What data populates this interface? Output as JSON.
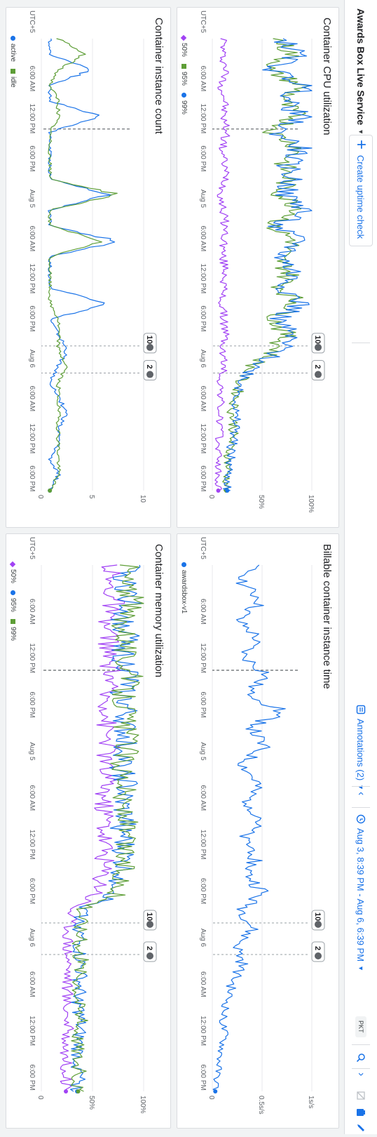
{
  "header": {
    "service_name": "Awards Box Live Service",
    "create_uptime_check": "Create uptime check",
    "annotations": "Annotations (2)",
    "time_range": "Aug 3, 8:39 PM - Aug 6, 6:39 PM",
    "timezone": "PKT"
  },
  "x_axis": {
    "tz": "UTC+5",
    "ticks": [
      "6:00 AM",
      "12:00 PM",
      "6:00 PM",
      "Aug 5",
      "6:00 AM",
      "12:00 PM",
      "6:00 PM",
      "Aug 6",
      "6:00 AM",
      "12:00 PM",
      "6:00 PM"
    ]
  },
  "annotation_badges": {
    "first": "10",
    "second": "2"
  },
  "colors": {
    "purple": "#a142f4",
    "green": "#5e9e37",
    "blue": "#1a73e8",
    "accent": "#1a73e8"
  },
  "icons": {
    "add": "plus-icon",
    "annotations": "annotation-icon",
    "prev": "chevron-left-icon",
    "clock": "clock-icon",
    "zoom": "zoom-icon",
    "next": "chevron-right-icon",
    "compare": "compare-icon",
    "save": "save-icon",
    "edit": "pencil-icon"
  },
  "charts": [
    {
      "id": "cpu",
      "title": "Container CPU utilization",
      "y_ticks": [
        "0",
        "50%",
        "100%"
      ],
      "legend": [
        {
          "label": "50%",
          "color": "#a142f4",
          "shape": "diamond"
        },
        {
          "label": "95%",
          "color": "#5e9e37",
          "shape": "square"
        },
        {
          "label": "99%",
          "color": "#1a73e8",
          "shape": "dot"
        }
      ]
    },
    {
      "id": "billable",
      "title": "Billable container instance time",
      "y_ticks": [
        "0",
        "0.5s/s",
        "1s/s"
      ],
      "legend": [
        {
          "label": "awardsbox-v1",
          "color": "#1a73e8",
          "shape": "dot"
        }
      ]
    },
    {
      "id": "instances",
      "title": "Container instance count",
      "y_ticks": [
        "0",
        "5",
        "10"
      ],
      "legend": [
        {
          "label": "active",
          "color": "#1a73e8",
          "shape": "dot"
        },
        {
          "label": "idle",
          "color": "#5e9e37",
          "shape": "square"
        }
      ]
    },
    {
      "id": "memory",
      "title": "Container memory utilization",
      "y_ticks": [
        "0",
        "50%",
        "100%"
      ],
      "legend": [
        {
          "label": "50%",
          "color": "#a142f4",
          "shape": "diamond"
        },
        {
          "label": "95%",
          "color": "#1a73e8",
          "shape": "dot"
        },
        {
          "label": "99%",
          "color": "#5e9e37",
          "shape": "square"
        }
      ]
    }
  ],
  "chart_data": [
    {
      "type": "line",
      "title": "Container CPU utilization",
      "ylim": [
        0,
        100
      ],
      "series": [
        {
          "name": "50%",
          "values": [
            12,
            10,
            14,
            9,
            13,
            11,
            15,
            10,
            12,
            14,
            9,
            11,
            13,
            12,
            10,
            14,
            11,
            9,
            12,
            13,
            10,
            12,
            8,
            9,
            7,
            8,
            6,
            7,
            5,
            6
          ]
        },
        {
          "name": "95%",
          "values": [
            65,
            80,
            55,
            90,
            70,
            85,
            60,
            88,
            72,
            76,
            68,
            92,
            58,
            84,
            66,
            78,
            70,
            86,
            62,
            74,
            64,
            40,
            28,
            24,
            20,
            22,
            18,
            16,
            15,
            14
          ]
        },
        {
          "name": "99%",
          "values": [
            70,
            85,
            60,
            95,
            74,
            88,
            64,
            90,
            76,
            80,
            72,
            96,
            62,
            88,
            70,
            82,
            74,
            90,
            66,
            78,
            68,
            44,
            30,
            26,
            22,
            24,
            20,
            18,
            16,
            15
          ]
        }
      ]
    },
    {
      "type": "line",
      "title": "Billable container instance time",
      "ylim": [
        0,
        1
      ],
      "series": [
        {
          "name": "awardsbox-v1",
          "values": [
            0.4,
            0.3,
            0.5,
            0.25,
            0.45,
            0.3,
            0.55,
            0.35,
            0.7,
            0.4,
            0.5,
            0.3,
            0.45,
            0.35,
            0.5,
            0.3,
            0.45,
            0.35,
            0.5,
            0.3,
            0.4,
            0.25,
            0.3,
            0.2,
            0.15,
            0.1,
            0.12,
            0.08,
            0.05,
            0.03
          ]
        }
      ]
    },
    {
      "type": "line",
      "title": "Container instance count",
      "ylim": [
        0,
        12
      ],
      "series": [
        {
          "name": "active",
          "values": [
            1,
            1,
            6,
            1,
            1,
            7,
            1,
            1,
            1,
            1,
            8,
            1,
            1,
            9,
            1,
            1,
            1,
            8,
            1,
            2,
            3,
            2,
            1,
            2,
            3,
            2,
            2,
            1,
            2,
            1
          ]
        },
        {
          "name": "idle",
          "values": [
            2,
            5,
            2,
            1,
            2,
            2,
            1,
            1,
            1,
            1,
            9,
            1,
            1,
            7,
            1,
            1,
            1,
            1,
            2,
            2,
            2,
            3,
            2,
            2,
            2,
            2,
            2,
            2,
            2,
            1
          ]
        }
      ]
    },
    {
      "type": "line",
      "title": "Container memory utilization",
      "ylim": [
        0,
        100
      ],
      "series": [
        {
          "name": "50%",
          "values": [
            70,
            65,
            72,
            60,
            68,
            64,
            70,
            62,
            66,
            63,
            67,
            61,
            65,
            60,
            64,
            62,
            63,
            60,
            58,
            30,
            28,
            26,
            27,
            26,
            25,
            26,
            25,
            24,
            25,
            24
          ]
        },
        {
          "name": "95%",
          "values": [
            85,
            80,
            88,
            78,
            84,
            80,
            86,
            79,
            82,
            80,
            84,
            78,
            82,
            77,
            81,
            79,
            80,
            78,
            76,
            40,
            38,
            36,
            38,
            37,
            36,
            37,
            36,
            35,
            36,
            35
          ]
        },
        {
          "name": "99%",
          "values": [
            86,
            81,
            89,
            79,
            85,
            81,
            87,
            80,
            83,
            81,
            85,
            79,
            83,
            78,
            82,
            80,
            81,
            79,
            77,
            41,
            39,
            37,
            39,
            38,
            37,
            38,
            37,
            36,
            37,
            36
          ]
        }
      ]
    }
  ]
}
